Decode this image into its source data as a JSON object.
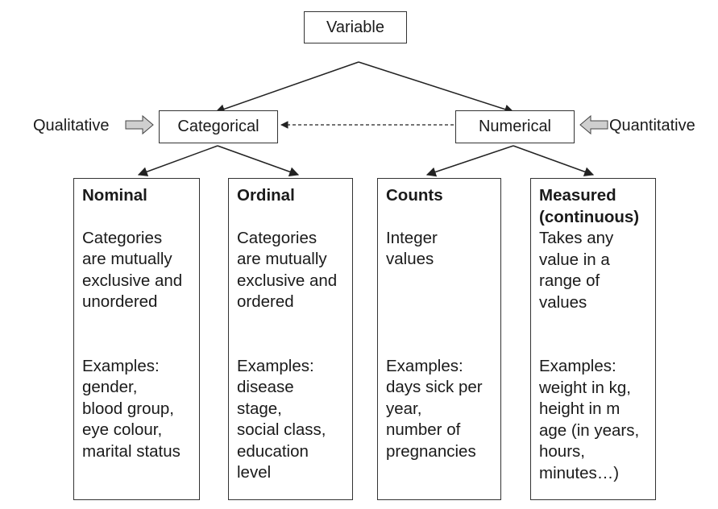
{
  "root": {
    "label": "Variable"
  },
  "left_branch": {
    "label": "Categorical",
    "side_label": "Qualitative"
  },
  "right_branch": {
    "label": "Numerical",
    "side_label": "Quantitative"
  },
  "columns": [
    {
      "title": [
        "Nominal"
      ],
      "description": [
        "Categories",
        "are mutually",
        "exclusive and",
        "unordered"
      ],
      "examples_heading": "Examples:",
      "examples": [
        "gender,",
        "blood group,",
        "eye colour,",
        "marital status"
      ]
    },
    {
      "title": [
        "Ordinal"
      ],
      "description": [
        "Categories",
        "are mutually",
        "exclusive and",
        "ordered"
      ],
      "examples_heading": "Examples:",
      "examples": [
        "disease",
        "stage,",
        "social class,",
        "education",
        "level"
      ]
    },
    {
      "title": [
        "Counts"
      ],
      "description": [
        "Integer",
        "values"
      ],
      "examples_heading": "Examples:",
      "examples": [
        "days sick per",
        "year,",
        "number of",
        "pregnancies"
      ]
    },
    {
      "title": [
        "Measured",
        "(continuous)"
      ],
      "description": [
        "Takes any",
        "value in a",
        "range of",
        "values"
      ],
      "examples_heading": "Examples:",
      "examples": [
        "weight in kg,",
        "height in m",
        "age (in years,",
        "hours,",
        "minutes…)"
      ]
    }
  ]
}
